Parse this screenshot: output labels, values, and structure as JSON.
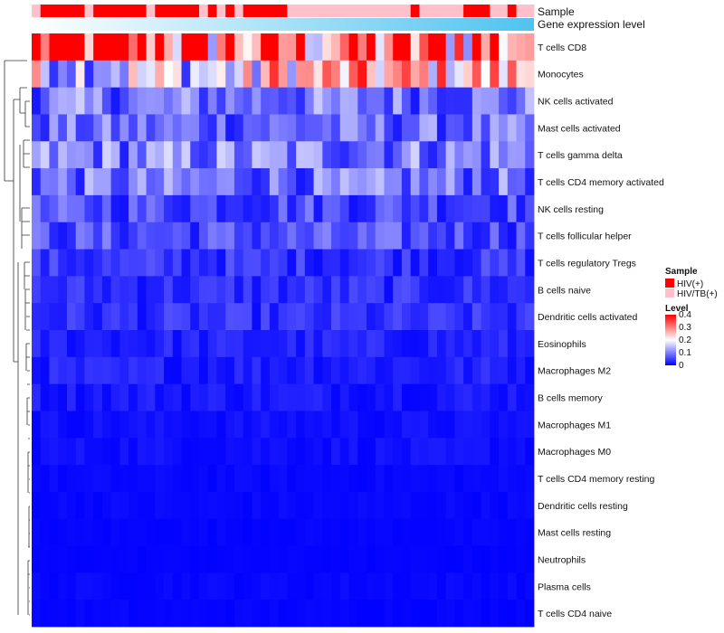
{
  "chart_data": {
    "type": "heatmap",
    "title": "",
    "annotations": {
      "sample_label": "Sample",
      "expression_label": "Gene expression level",
      "sample_groups": [
        "B",
        "A",
        "A",
        "A",
        "A",
        "A",
        "B",
        "A",
        "A",
        "A",
        "A",
        "A",
        "A",
        "B",
        "A",
        "A",
        "A",
        "A",
        "A",
        "B",
        "A",
        "B",
        "A",
        "B",
        "A",
        "A",
        "A",
        "A",
        "A",
        "B",
        "B",
        "B",
        "B",
        "B",
        "B",
        "B",
        "B",
        "B",
        "B",
        "B",
        "B",
        "B",
        "B",
        "A",
        "B",
        "B",
        "B",
        "B",
        "B",
        "A",
        "A",
        "A",
        "B",
        "B",
        "A",
        "B",
        "B"
      ],
      "expression_levels": [
        0.0,
        0.02,
        0.04,
        0.05,
        0.07,
        0.09,
        0.11,
        0.12,
        0.14,
        0.16,
        0.18,
        0.2,
        0.21,
        0.23,
        0.25,
        0.27,
        0.29,
        0.3,
        0.32,
        0.34,
        0.36,
        0.38,
        0.39,
        0.41,
        0.43,
        0.45,
        0.46,
        0.48,
        0.5,
        0.52,
        0.54,
        0.55,
        0.57,
        0.59,
        0.61,
        0.63,
        0.64,
        0.66,
        0.68,
        0.7,
        0.71,
        0.73,
        0.75,
        0.77,
        0.79,
        0.8,
        0.82,
        0.84,
        0.86,
        0.88,
        0.89,
        0.91,
        0.93,
        0.95,
        0.96,
        0.98,
        1.0
      ]
    },
    "rows": [
      "T cells CD8",
      "Monocytes",
      "NK cells activated",
      "Mast cells activated",
      "T cells gamma delta",
      "T cells CD4 memory activated",
      "NK cells resting",
      "T cells follicular helper",
      "T cells regulatory  Tregs",
      "B cells naive",
      "Dendritic cells activated",
      "Eosinophils",
      "Macrophages M2",
      "B cells memory",
      "Macrophages M1",
      "Macrophages M0",
      "T cells CD4 memory resting",
      "Dendritic cells resting",
      "Mast cells resting",
      "Neutrophils",
      "Plasma cells",
      "T cells CD4 naive"
    ],
    "n_samples": 57,
    "row_means": [
      0.32,
      0.17,
      0.09,
      0.08,
      0.1,
      0.085,
      0.06,
      0.06,
      0.04,
      0.035,
      0.035,
      0.025,
      0.025,
      0.02,
      0.012,
      0.012,
      0.006,
      0.006,
      0.004,
      0.003,
      0.006,
      0.004
    ],
    "color_scale": {
      "min": 0,
      "max": 0.4,
      "low": "#0000ff",
      "mid": "#ffffff",
      "high": "#ff0000"
    },
    "legend": {
      "sample_title": "Sample",
      "groups": [
        {
          "key": "A",
          "label": "HIV(+)",
          "color": "#ff0000"
        },
        {
          "key": "B",
          "label": "HIV/TB(+)",
          "color": "#ffc0cb"
        }
      ],
      "level_title": "Level",
      "level_ticks": [
        {
          "value": 0.4,
          "label": "0.4"
        },
        {
          "value": 0.3,
          "label": "0.3"
        },
        {
          "value": 0.2,
          "label": "0.2"
        },
        {
          "value": 0.1,
          "label": "0.1"
        },
        {
          "value": 0.0,
          "label": "0"
        }
      ],
      "placement": "right"
    }
  }
}
